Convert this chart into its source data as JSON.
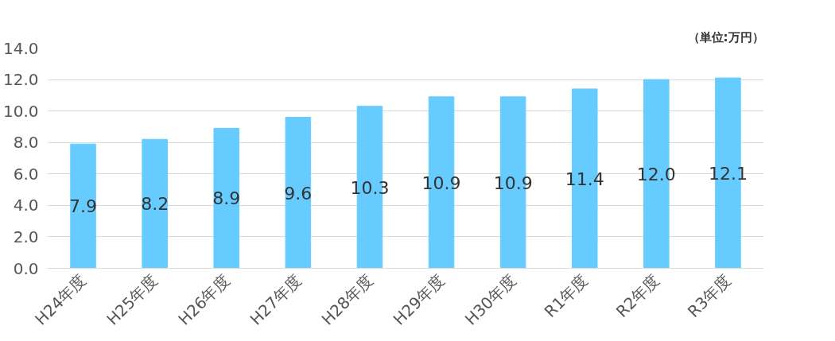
{
  "chart_data": {
    "type": "bar",
    "categories": [
      "H24年度",
      "H25年度",
      "H26年度",
      "H27年度",
      "H28年度",
      "H29年度",
      "H30年度",
      "R1年度",
      "R2年度",
      "R3年度"
    ],
    "values": [
      7.9,
      8.2,
      8.9,
      9.6,
      10.3,
      10.9,
      10.9,
      11.4,
      12.0,
      12.1
    ],
    "color": "#66ccff",
    "ylim": [
      0,
      14
    ],
    "yticks": [
      {
        "value": 0,
        "label": "0.0"
      },
      {
        "value": 2,
        "label": "2.0"
      },
      {
        "value": 4,
        "label": "4.0"
      },
      {
        "value": 6,
        "label": "6.0"
      },
      {
        "value": 8,
        "label": "8.0"
      },
      {
        "value": 10,
        "label": "10.0"
      },
      {
        "value": 12,
        "label": "12.0"
      },
      {
        "value": 14,
        "label": "14.0"
      }
    ],
    "grid": "y",
    "value_labels": [
      "7.9",
      "8.2",
      "8.9",
      "9.6",
      "10.3",
      "10.9",
      "10.9",
      "11.4",
      "12.0",
      "12.1"
    ],
    "annotations": [
      "（単位:万円）"
    ]
  }
}
